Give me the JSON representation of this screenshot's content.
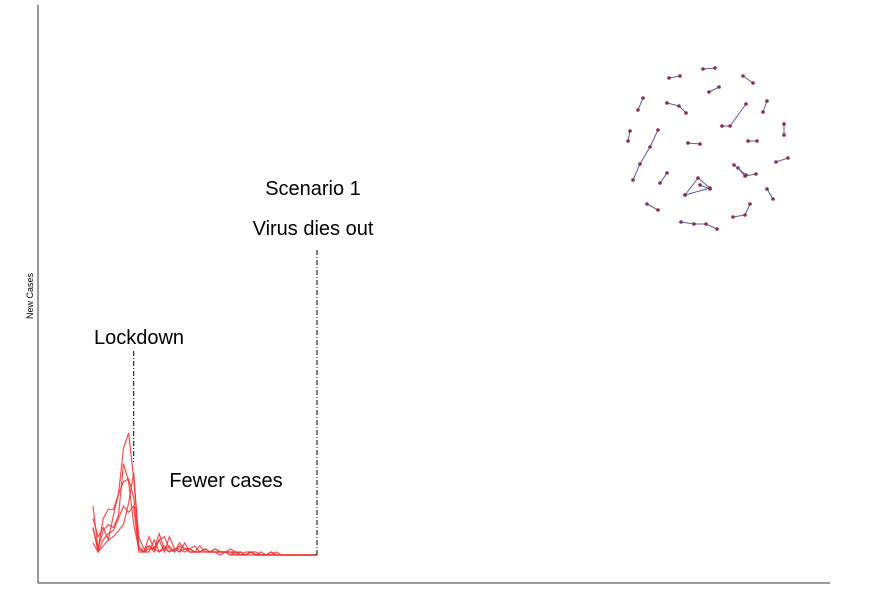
{
  "chart_data": {
    "type": "line",
    "title": "",
    "xlabel": "",
    "ylabel": "New Cases",
    "grid": false,
    "legend": "none",
    "xlim": [
      0,
      60
    ],
    "ylim": [
      0,
      100
    ],
    "x": [
      0,
      1,
      2,
      3,
      4,
      5,
      6,
      7,
      8,
      9,
      10,
      11,
      12,
      13,
      14,
      15,
      16,
      17,
      18,
      19,
      20,
      21,
      22,
      23,
      24,
      25,
      26,
      27,
      28,
      29,
      30,
      31,
      32,
      33,
      34,
      35,
      36,
      37,
      38,
      39,
      40,
      41,
      42,
      43,
      44
    ],
    "series": [
      {
        "values": [
          9,
          2,
          8,
          10,
          9,
          13,
          30,
          24,
          10,
          2,
          1,
          2,
          2,
          1,
          3,
          1,
          2,
          2,
          1,
          2,
          1,
          1,
          2,
          1,
          1,
          1,
          1,
          1,
          0,
          1,
          0,
          1,
          0,
          1,
          0,
          0,
          1,
          0,
          0,
          0,
          0,
          0,
          0,
          0,
          0
        ]
      },
      {
        "values": [
          12,
          6,
          9,
          5,
          13,
          20,
          24,
          25,
          19,
          2,
          1,
          3,
          1,
          5,
          1,
          6,
          2,
          1,
          4,
          1,
          1,
          3,
          1,
          1,
          2,
          1,
          1,
          2,
          1,
          0,
          1,
          1,
          1,
          0,
          0,
          1,
          0,
          0,
          0,
          0,
          0,
          0,
          0,
          0,
          0
        ]
      },
      {
        "values": [
          9,
          1,
          3,
          5,
          6,
          8,
          10,
          17,
          27,
          3,
          1,
          6,
          2,
          7,
          2,
          3,
          1,
          4,
          2,
          2,
          1,
          1,
          2,
          1,
          1,
          1,
          1,
          0,
          1,
          0,
          0,
          1,
          0,
          0,
          0,
          1,
          0,
          0,
          0,
          0,
          0,
          0,
          0,
          0,
          0
        ]
      },
      {
        "values": [
          16,
          2,
          12,
          15,
          15,
          20,
          35,
          40,
          25,
          6,
          2,
          3,
          2,
          5,
          6,
          2,
          1,
          3,
          2,
          2,
          3,
          1,
          2,
          1,
          2,
          1,
          1,
          1,
          1,
          1,
          0,
          1,
          0,
          0,
          0,
          0,
          0,
          0,
          0,
          0,
          0,
          0,
          0,
          0,
          0
        ]
      },
      {
        "values": [
          4,
          1,
          5,
          7,
          8,
          12,
          16,
          14,
          16,
          1,
          1,
          1,
          5,
          1,
          2,
          1,
          2,
          1,
          2,
          1,
          1,
          1,
          1,
          1,
          1,
          0,
          1,
          0,
          0,
          0,
          0,
          0,
          0,
          0,
          0,
          0,
          0,
          0,
          0,
          0,
          0,
          0,
          0,
          0,
          0
        ]
      }
    ],
    "series_color": "#ee3333",
    "annotations": [
      {
        "text": "Lockdown",
        "x": 8
      },
      {
        "text": "Fewer cases"
      },
      {
        "text": "Scenario 1"
      },
      {
        "text": "Virus dies out",
        "x": 44
      }
    ],
    "network_inset": {
      "node_color": "#8b2e4a",
      "edge_color": "#5a5aa8"
    }
  }
}
